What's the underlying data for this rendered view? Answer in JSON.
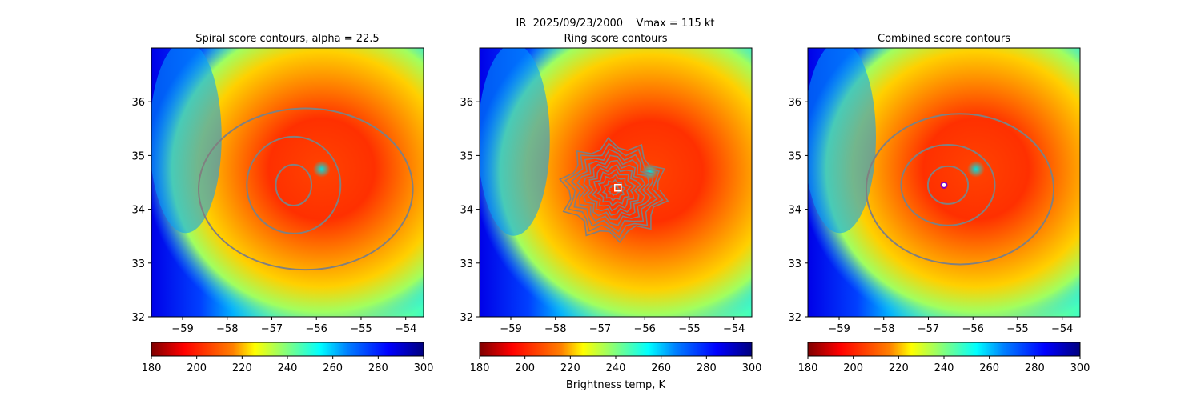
{
  "figure": {
    "suptitle": "IR  2025/09/23/2000    Vmax = 115 kt",
    "colorbar_label": "Brightness temp, K"
  },
  "colorbar": {
    "ticks": [
      "180",
      "200",
      "220",
      "240",
      "260",
      "280",
      "300"
    ],
    "range": [
      180,
      300
    ],
    "colormap": "jet_r",
    "colors": [
      "#7f0000",
      "#ff0000",
      "#ff7f00",
      "#ffff00",
      "#7fff7f",
      "#00ffff",
      "#007fff",
      "#0000ff",
      "#00007f"
    ]
  },
  "chart_data": [
    {
      "type": "heatmap",
      "title": "Spiral score contours, alpha = 22.5",
      "xlabel": "",
      "ylabel": "",
      "xlim": [
        -59.7,
        -53.6
      ],
      "ylim": [
        32.0,
        37.0
      ],
      "xticks": [
        "−59",
        "−58",
        "−57",
        "−56",
        "−55",
        "−54"
      ],
      "yticks": [
        "32",
        "33",
        "34",
        "35",
        "36"
      ],
      "center": {
        "lon": -56.6,
        "lat": 34.45
      },
      "contour_color": "#808080",
      "contours": [
        {
          "name": "inner ring",
          "lon_radius": 0.4,
          "lat_radius": 0.38
        },
        {
          "name": "middle ring",
          "lon_radius": 1.05,
          "lat_radius": 0.9
        },
        {
          "name": "outer spiral",
          "lon_radius": 2.4,
          "lat_radius": 1.5
        }
      ]
    },
    {
      "type": "heatmap",
      "title": "Ring score contours",
      "xlabel": "",
      "ylabel": "",
      "xlim": [
        -59.7,
        -53.6
      ],
      "ylim": [
        32.0,
        37.0
      ],
      "xticks": [
        "−59",
        "−58",
        "−57",
        "−56",
        "−55",
        "−54"
      ],
      "yticks": [
        "32",
        "33",
        "34",
        "35",
        "36"
      ],
      "center": {
        "lon": -56.6,
        "lat": 34.4
      },
      "marker": "white square",
      "contour_color": "#808080"
    },
    {
      "type": "heatmap",
      "title": "Combined score contours",
      "xlabel": "",
      "ylabel": "",
      "xlim": [
        -59.7,
        -53.6
      ],
      "ylim": [
        32.0,
        37.0
      ],
      "xticks": [
        "−59",
        "−58",
        "−57",
        "−56",
        "−55",
        "−54"
      ],
      "yticks": [
        "32",
        "33",
        "34",
        "35",
        "36"
      ],
      "center": {
        "lon": -56.65,
        "lat": 34.45
      },
      "marker": "purple circle",
      "contour_color": "#808080",
      "contours": [
        {
          "name": "inner ring",
          "lon_radius": 0.45,
          "lat_radius": 0.35
        },
        {
          "name": "middle ring",
          "lon_radius": 1.05,
          "lat_radius": 0.75
        },
        {
          "name": "outer ring",
          "lon_radius": 2.1,
          "lat_radius": 1.4
        }
      ]
    }
  ]
}
